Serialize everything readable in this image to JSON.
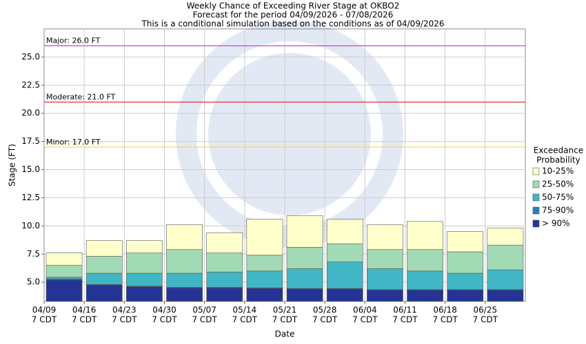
{
  "chart_data": {
    "type": "bar",
    "title": [
      "Weekly Chance of Exceeding River Stage at OKBO2",
      "Forecast for the period 04/09/2026 - 07/08/2026",
      "This is a conditional simulation based on the conditions as of 04/09/2026"
    ],
    "ylabel": "Stage (FT)",
    "xlabel": "Date",
    "legend_title": [
      "Exceedance",
      "Probability"
    ],
    "x_tick_suffix": "7 CDT",
    "categories": [
      "04/09",
      "04/16",
      "04/23",
      "04/30",
      "05/07",
      "05/14",
      "05/21",
      "05/28",
      "06/04",
      "06/11",
      "06/18",
      "06/25"
    ],
    "series": [
      {
        "name": "10-25%",
        "color": "#ffffcc",
        "values": [
          7.6,
          8.7,
          8.7,
          10.1,
          9.4,
          10.6,
          10.9,
          10.6,
          10.1,
          10.4,
          9.5,
          9.8
        ]
      },
      {
        "name": "25-50%",
        "color": "#a1dab4",
        "values": [
          6.5,
          7.3,
          7.6,
          7.9,
          7.6,
          7.4,
          8.1,
          8.4,
          7.9,
          7.9,
          7.7,
          8.3
        ]
      },
      {
        "name": "50-75%",
        "color": "#41b6c4",
        "values": [
          5.45,
          5.8,
          5.8,
          5.8,
          5.9,
          6.0,
          6.2,
          6.8,
          6.2,
          6.0,
          5.8,
          6.1
        ]
      },
      {
        "name": "75-90%",
        "color": "#2c7fb8",
        "values": [
          5.3,
          4.8,
          4.65,
          4.55,
          4.55,
          4.5,
          4.45,
          4.45,
          4.35,
          4.35,
          4.35,
          4.35
        ]
      },
      {
        "name": "> 90%",
        "color": "#253494",
        "values": [
          5.2,
          4.75,
          4.6,
          4.5,
          4.5,
          4.45,
          4.4,
          4.4,
          4.3,
          4.3,
          4.3,
          4.3
        ]
      }
    ],
    "thresholds": [
      {
        "label": "Major: 26.0 FT",
        "value": 26.0,
        "color": "#cc33cc"
      },
      {
        "label": "Moderate: 21.0 FT",
        "value": 21.0,
        "color": "#dd3344"
      },
      {
        "label": "Minor: 17.0 FT",
        "value": 17.0,
        "color": "#eedd44"
      }
    ],
    "ylim": [
      3.3,
      27.5
    ],
    "yticks": [
      {
        "value": 5,
        "label": "5.0"
      },
      {
        "value": 7.5,
        "label": "7.5"
      },
      {
        "value": 10,
        "label": "10.0"
      },
      {
        "value": 12.5,
        "label": "12.5"
      },
      {
        "value": 15,
        "label": "15.0"
      },
      {
        "value": 17.5,
        "label": "17.5"
      },
      {
        "value": 20,
        "label": "20.0"
      },
      {
        "value": 22.5,
        "label": "22.5"
      },
      {
        "value": 25,
        "label": "25.0"
      }
    ],
    "grid": true
  }
}
